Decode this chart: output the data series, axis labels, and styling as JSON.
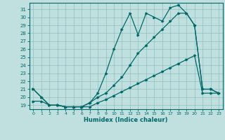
{
  "xlabel": "Humidex (Indice chaleur)",
  "bg_color": "#c0e0e0",
  "grid_color": "#90c0c0",
  "line_color": "#006868",
  "xlim": [
    -0.5,
    23.5
  ],
  "ylim": [
    18.5,
    31.8
  ],
  "xticks": [
    0,
    1,
    2,
    3,
    4,
    5,
    6,
    7,
    8,
    9,
    10,
    11,
    12,
    13,
    14,
    15,
    16,
    17,
    18,
    19,
    20,
    21,
    22,
    23
  ],
  "yticks": [
    19,
    20,
    21,
    22,
    23,
    24,
    25,
    26,
    27,
    28,
    29,
    30,
    31
  ],
  "line1_x": [
    0,
    1,
    2,
    3,
    4,
    5,
    6,
    7,
    8,
    9,
    10,
    11,
    12,
    13,
    14,
    15,
    16,
    17,
    18,
    19,
    20,
    21,
    22,
    23
  ],
  "line1_y": [
    21.0,
    20.0,
    19.0,
    19.0,
    18.8,
    18.8,
    18.8,
    19.3,
    20.5,
    23.0,
    26.0,
    28.5,
    30.5,
    27.8,
    30.5,
    30.0,
    29.5,
    31.2,
    31.5,
    30.5,
    29.0,
    21.0,
    21.0,
    20.5
  ],
  "line2_x": [
    0,
    1,
    2,
    3,
    4,
    5,
    6,
    7,
    8,
    9,
    10,
    11,
    12,
    13,
    14,
    15,
    16,
    17,
    18,
    19,
    20,
    21,
    22,
    23
  ],
  "line2_y": [
    21.0,
    20.0,
    19.0,
    19.0,
    18.8,
    18.8,
    18.8,
    19.3,
    20.0,
    20.5,
    21.5,
    22.5,
    24.0,
    25.5,
    26.5,
    27.5,
    28.5,
    29.5,
    30.5,
    30.5,
    29.0,
    21.0,
    21.0,
    20.5
  ],
  "line3_x": [
    0,
    1,
    2,
    3,
    4,
    5,
    6,
    7,
    8,
    9,
    10,
    11,
    12,
    13,
    14,
    15,
    16,
    17,
    18,
    19,
    20,
    21,
    22,
    23
  ],
  "line3_y": [
    19.5,
    19.5,
    19.0,
    19.0,
    18.8,
    18.8,
    18.8,
    18.8,
    19.3,
    19.7,
    20.2,
    20.7,
    21.2,
    21.7,
    22.2,
    22.7,
    23.2,
    23.7,
    24.2,
    24.7,
    25.2,
    20.5,
    20.5,
    20.5
  ]
}
